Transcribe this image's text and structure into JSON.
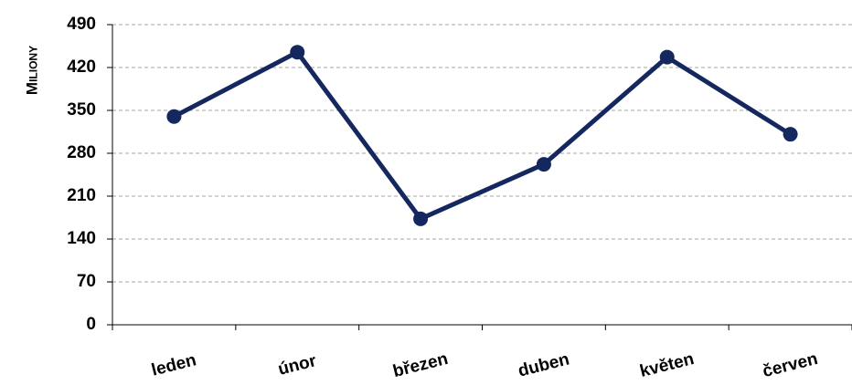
{
  "chart_data": {
    "type": "line",
    "y_label": "Miliony",
    "categories": [
      "leden",
      "únor",
      "březen",
      "duben",
      "květen",
      "červen"
    ],
    "series": [
      {
        "name": null,
        "color": "#14275f",
        "values": [
          340,
          445,
          173,
          262,
          437,
          311
        ]
      }
    ],
    "ylim": [
      0,
      490
    ],
    "yticks": [
      0,
      70,
      140,
      210,
      280,
      350,
      420,
      490
    ],
    "grid": true
  }
}
